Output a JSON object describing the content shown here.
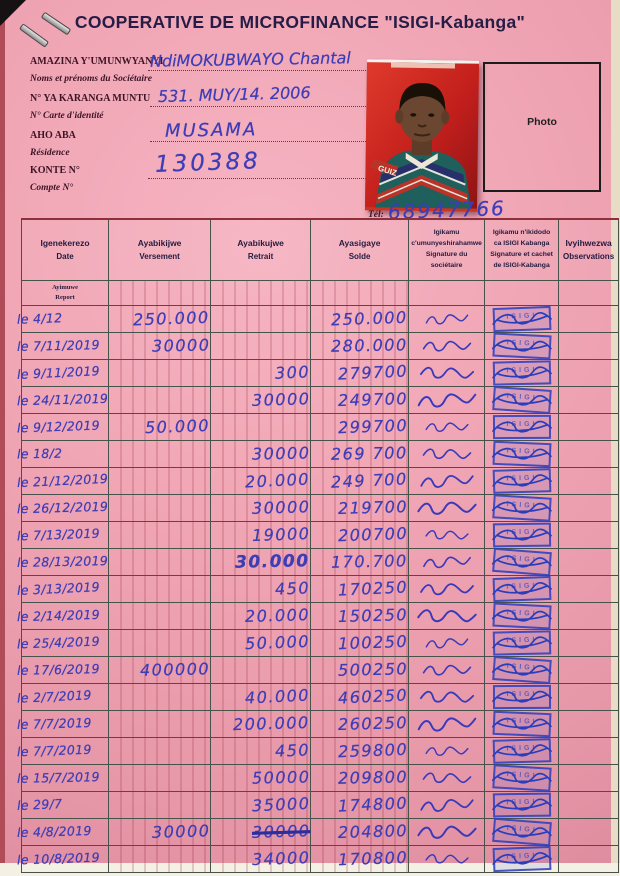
{
  "page": {
    "title": "COOPERATIVE DE MICROFINANCE \"ISIGI-Kabanga\"",
    "info": {
      "name": {
        "label_rn": "AMAZINA Y'UMUNWYANYI",
        "label_fr": "Noms et prénoms du Sociétaire",
        "value": "NdiMOKUBWAYO Chantal"
      },
      "id": {
        "label_rn": "N° YA KARANGA MUNTU",
        "label_fr": "N° Carte d'identité",
        "value": "531. MUY/14. 2006"
      },
      "residence": {
        "label_rn": "AHO ABA",
        "label_fr": "Résidence",
        "value": "MUSAMA"
      },
      "account": {
        "label_rn": "KONTE N°",
        "label_fr": "Compte N°",
        "value": "130388"
      }
    },
    "photo_label": "Photo",
    "tel": {
      "label": "Tél:",
      "value": "68947766"
    }
  },
  "table": {
    "headers": [
      {
        "lines": [
          "Igenekerezo",
          "Date"
        ],
        "small": false
      },
      {
        "lines": [
          "Ayabikijwe",
          "Versement"
        ],
        "small": false
      },
      {
        "lines": [
          "Ayabikujwe",
          "Retrait"
        ],
        "small": false
      },
      {
        "lines": [
          "Ayasigaye",
          "Solde"
        ],
        "small": false
      },
      {
        "lines": [
          "Igikamu",
          "c'umunyeshirahamwe",
          "Signature du sociétaire"
        ],
        "small": true
      },
      {
        "lines": [
          "Igikamu n'ikidodo",
          "ca ISIGI Kabanga",
          "Signature et cachet",
          "de ISIGI-Kabanga"
        ],
        "small": true
      },
      {
        "lines": [
          "Ivyihwezwa",
          "Observations"
        ],
        "small": false
      }
    ],
    "subheader": {
      "lines": [
        "Ayimuwe",
        "Report"
      ]
    },
    "stamp_text": "ISIGI",
    "rows": [
      {
        "date": "le 4/12",
        "v": "250.000",
        "r": "",
        "s": "250.000"
      },
      {
        "date": "le 7/11/2019",
        "v": "30000",
        "r": "",
        "s": "280.000"
      },
      {
        "date": "le 9/11/2019",
        "v": "",
        "r": "300",
        "s": "279700"
      },
      {
        "date": "le 24/11/2019",
        "v": "",
        "r": "30000",
        "s": "249700"
      },
      {
        "date": "le 9/12/2019",
        "v": "50.000",
        "r": "",
        "s": "299700"
      },
      {
        "date": "le 18/2",
        "v": "",
        "r": "30000",
        "s": "269 700"
      },
      {
        "date": "le 21/12/2019",
        "v": "",
        "r": "20.000",
        "s": "249 700"
      },
      {
        "date": "le 26/12/2019",
        "v": "",
        "r": "30000",
        "s": "219700"
      },
      {
        "date": "le 7/13/2019",
        "v": "",
        "r": "19000",
        "s": "200700"
      },
      {
        "date": "le 28/13/2019",
        "v": "",
        "r": "30.000",
        "s": "170.700",
        "r_bold": true
      },
      {
        "date": "le 3/13/2019",
        "v": "",
        "r": "450",
        "s": "170250"
      },
      {
        "date": "le 2/14/2019",
        "v": "",
        "r": "20.000",
        "s": "150250"
      },
      {
        "date": "le 25/4/2019",
        "v": "",
        "r": "50.000",
        "s": "100250"
      },
      {
        "date": "le 17/6/2019",
        "v": "400000",
        "r": "",
        "s": "500250"
      },
      {
        "date": "le 2/7/2019",
        "v": "",
        "r": "40.000",
        "s": "460250"
      },
      {
        "date": "le 7/7/2019",
        "v": "",
        "r": "200.000",
        "s": "260250"
      },
      {
        "date": "le 7/7/2019",
        "v": "",
        "r": "450",
        "s": "259800"
      },
      {
        "date": "le 15/7/2019",
        "v": "",
        "r": "50000",
        "s": "209800"
      },
      {
        "date": "le 29/7",
        "v": "",
        "r": "35000",
        "s": "174800"
      },
      {
        "date": "le 4/8/2019",
        "v": "30000",
        "r": "30000",
        "s": "204800",
        "r_struck": true
      },
      {
        "date": "le 10/8/2019",
        "v": "",
        "r": "34000",
        "s": "170800"
      }
    ]
  },
  "icons": {
    "member_signature": "signature-scribble",
    "cashier_signature": "signature-scribble",
    "stamp": "rectangular-ink-stamp",
    "staple": "staple-bar"
  },
  "colors": {
    "page_pink": "#f0a5b4",
    "ink_blue": "#3d3db6",
    "stamp_blue": "#2a3ebc",
    "grid_dark": "#46524a",
    "grid_red": "#962d3c",
    "title_ink": "#261c46"
  }
}
